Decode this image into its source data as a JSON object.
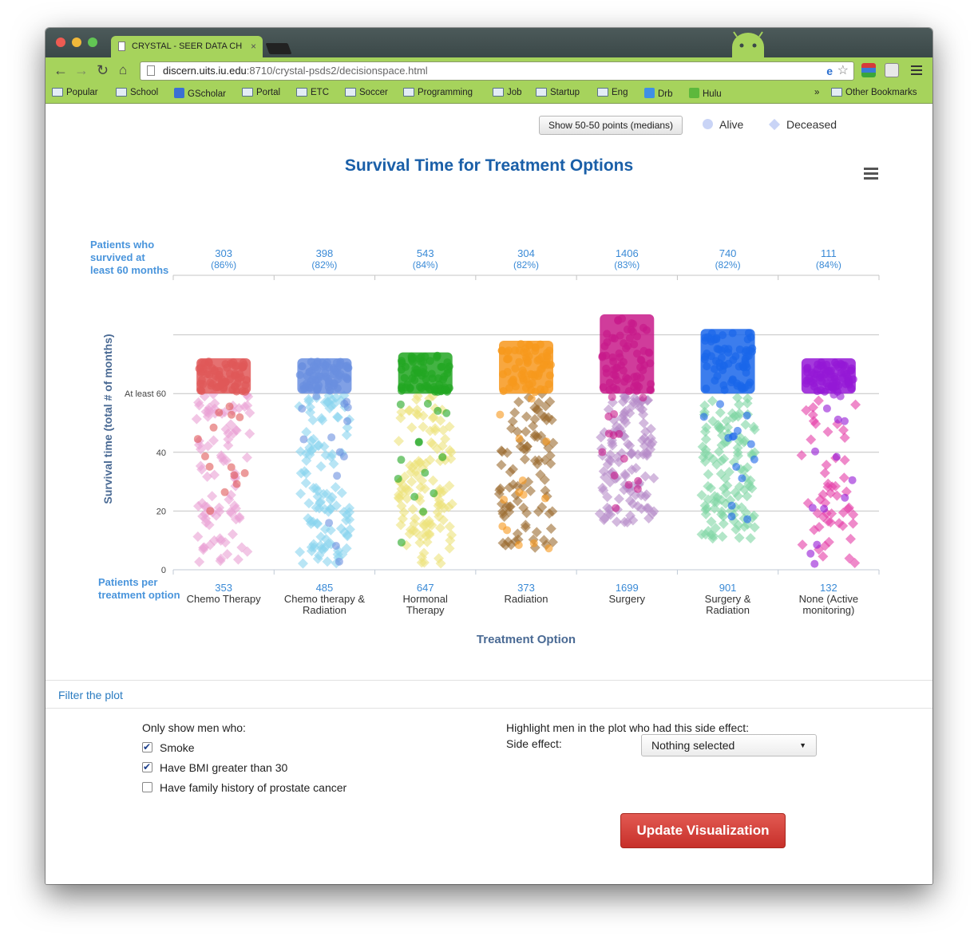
{
  "browser": {
    "tab_title": "CRYSTAL - SEER DATA CH",
    "tab_close": "×",
    "url_host": "discern.uits.iu.edu",
    "url_path": ":8710/crystal-psds2/decisionspace.html",
    "bookmarks": [
      {
        "label": "Popular",
        "icon": "folder-icon"
      },
      {
        "label": "School",
        "icon": "folder-icon"
      },
      {
        "label": "GScholar",
        "icon": "gscholar-icon"
      },
      {
        "label": "Portal",
        "icon": "folder-icon"
      },
      {
        "label": "ETC",
        "icon": "folder-icon"
      },
      {
        "label": "Soccer",
        "icon": "folder-icon"
      },
      {
        "label": "Programming",
        "icon": "folder-icon"
      },
      {
        "label": "Job",
        "icon": "folder-icon"
      },
      {
        "label": "Startup",
        "icon": "folder-icon"
      },
      {
        "label": "Eng",
        "icon": "folder-icon"
      },
      {
        "label": "Drb",
        "icon": "dropbox-icon"
      },
      {
        "label": "Hulu",
        "icon": "hulu-icon"
      }
    ],
    "overflow": "»",
    "other_bookmarks": "Other Bookmarks"
  },
  "controls": {
    "medians_button": "Show 50-50 points (medians)",
    "legend_alive": "Alive",
    "legend_deceased": "Deceased"
  },
  "chart_data": {
    "type": "scatter",
    "title": "Survival Time for Treatment Options",
    "xlabel": "Treatment Option",
    "ylabel": "Survival time (total # of months)",
    "ylim": [
      0,
      80
    ],
    "y_ticks": [
      {
        "value": 0,
        "label": "0"
      },
      {
        "value": 20,
        "label": "20"
      },
      {
        "value": 40,
        "label": "40"
      },
      {
        "value": 60,
        "label": "At least 60"
      }
    ],
    "survived_label": "Patients who survived at least 60 months",
    "patients_label": "Patients per treatment option",
    "grid": true,
    "categories": [
      {
        "label": "Chemo Therapy",
        "patients": "353",
        "survived": "303",
        "survived_pct": "(86%)",
        "color": "#e05858",
        "deceased_color": "#e9a0d4",
        "top": 72,
        "bottom": 2
      },
      {
        "label": "Chemo therapy & Radiation",
        "patients": "485",
        "survived": "398",
        "survived_pct": "(82%)",
        "color": "#6a8fe0",
        "deceased_color": "#88d4ee",
        "top": 72,
        "bottom": 2
      },
      {
        "label": "Hormonal Therapy",
        "patients": "647",
        "survived": "543",
        "survived_pct": "(84%)",
        "color": "#22a622",
        "deceased_color": "#ece37c",
        "top": 74,
        "bottom": 2
      },
      {
        "label": "Radiation",
        "patients": "373",
        "survived": "304",
        "survived_pct": "(82%)",
        "color": "#f7981d",
        "deceased_color": "#9b6b2f",
        "top": 78,
        "bottom": 6
      },
      {
        "label": "Surgery",
        "patients": "1699",
        "survived": "1406",
        "survived_pct": "(83%)",
        "color": "#c81a8a",
        "deceased_color": "#b58bc8",
        "top": 87,
        "bottom": 16
      },
      {
        "label": "Surgery & Radiation",
        "patients": "901",
        "survived": "740",
        "survived_pct": "(82%)",
        "color": "#1a66ea",
        "deceased_color": "#7ed6a4",
        "top": 82,
        "bottom": 10
      },
      {
        "label": "None (Active monitoring)",
        "patients": "132",
        "survived": "111",
        "survived_pct": "(84%)",
        "color": "#9418d6",
        "deceased_color": "#e43ca6",
        "top": 72,
        "bottom": 2
      }
    ]
  },
  "filters": {
    "section_label": "Filter the plot",
    "only_show_label": "Only show men who:",
    "options": [
      {
        "label": "Smoke",
        "checked": true
      },
      {
        "label": "Have BMI greater than 30",
        "checked": true
      },
      {
        "label": "Have family history of prostate cancer",
        "checked": false
      }
    ],
    "highlight_label": "Highlight men in the plot who had this side effect:",
    "side_effect_label": "Side effect:",
    "side_effect_value": "Nothing selected",
    "update_button": "Update Visualization"
  }
}
